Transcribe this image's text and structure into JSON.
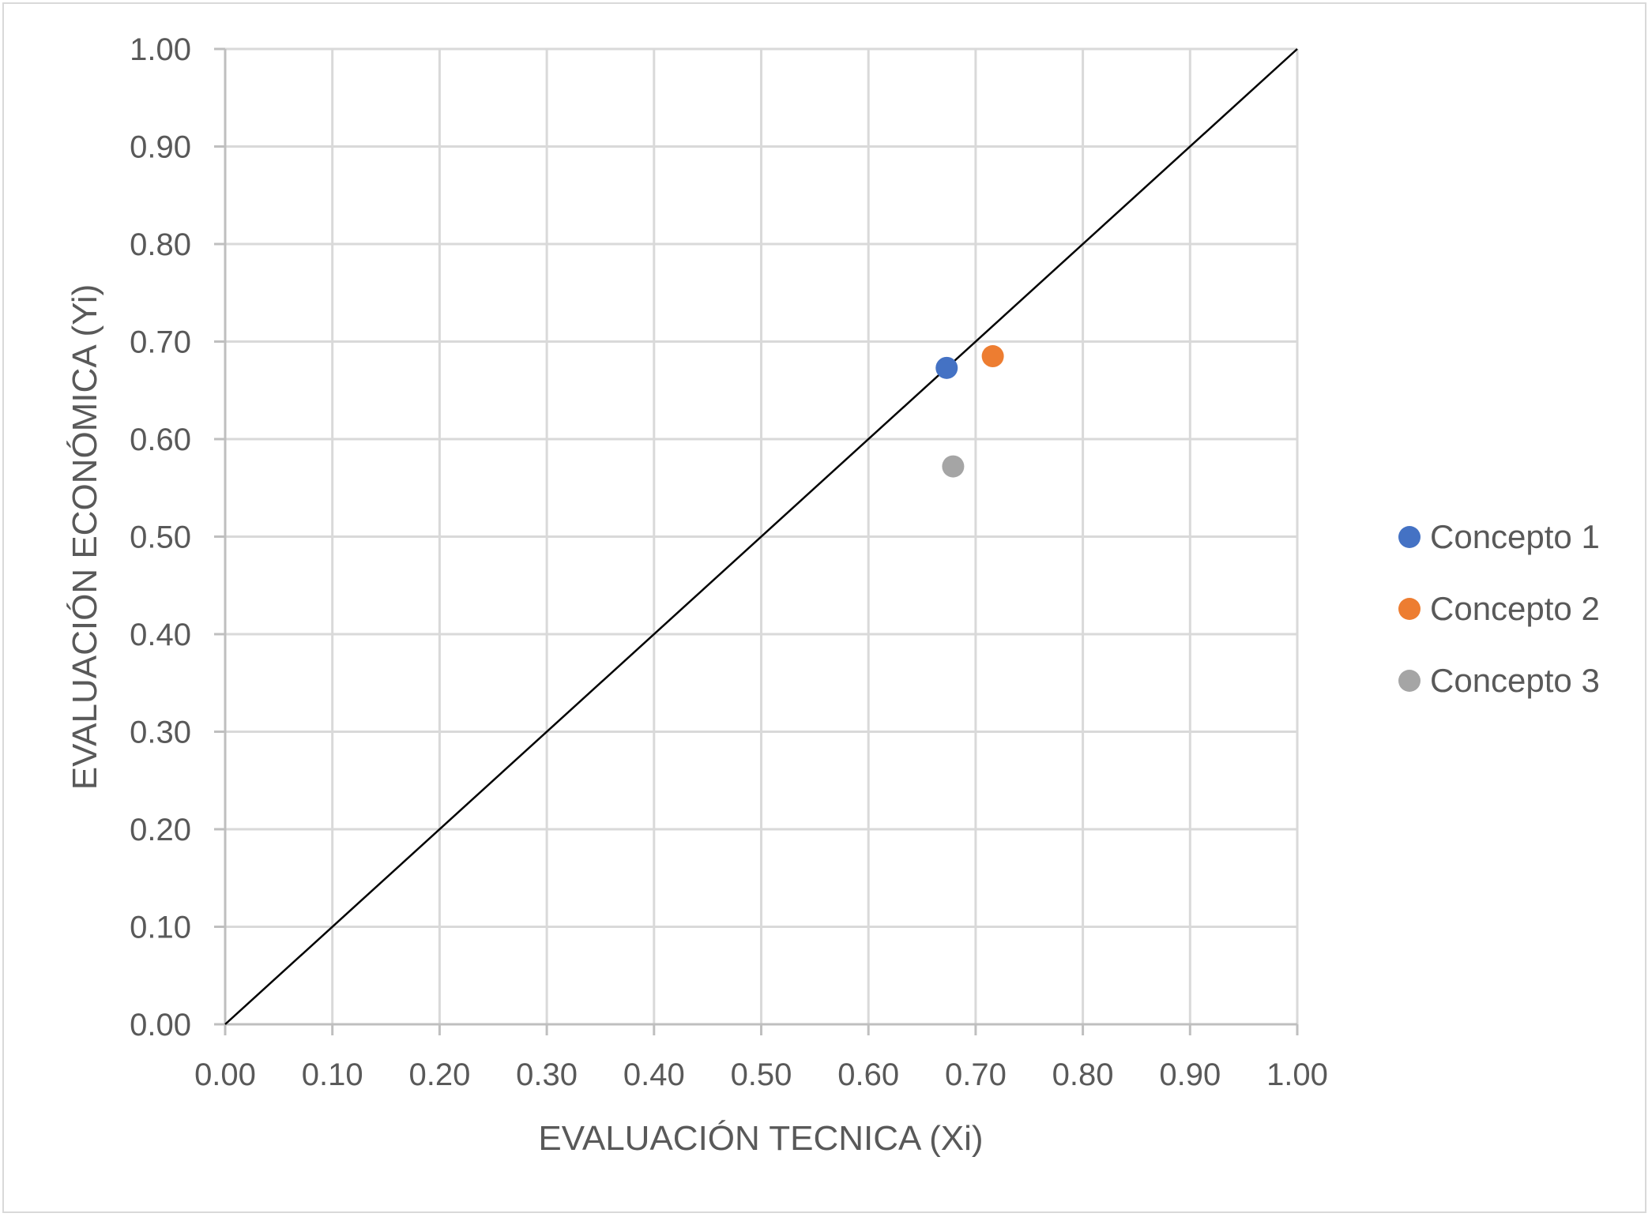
{
  "chart_data": {
    "type": "scatter",
    "title": "",
    "xlabel": "EVALUACIÓN TECNICA (Xi)",
    "ylabel": "EVALUACIÓN ECONÓMICA (Yi)",
    "xlim": [
      0,
      1
    ],
    "ylim": [
      0,
      1
    ],
    "x_ticks": [
      "0.00",
      "0.10",
      "0.20",
      "0.30",
      "0.40",
      "0.50",
      "0.60",
      "0.70",
      "0.80",
      "0.90",
      "1.00"
    ],
    "y_ticks": [
      "0.00",
      "0.10",
      "0.20",
      "0.30",
      "0.40",
      "0.50",
      "0.60",
      "0.70",
      "0.80",
      "0.90",
      "1.00"
    ],
    "grid": true,
    "legend_position": "right",
    "reference_line": {
      "from": [
        0,
        0
      ],
      "to": [
        1,
        1
      ],
      "color": "#000000"
    },
    "series": [
      {
        "name": "Concepto 1",
        "color": "#4472C4",
        "points": [
          {
            "x": 0.673,
            "y": 0.673
          }
        ]
      },
      {
        "name": "Concepto 2",
        "color": "#ED7D31",
        "points": [
          {
            "x": 0.716,
            "y": 0.685
          }
        ]
      },
      {
        "name": "Concepto 3",
        "color": "#A5A5A5",
        "points": [
          {
            "x": 0.679,
            "y": 0.572
          }
        ]
      }
    ]
  }
}
